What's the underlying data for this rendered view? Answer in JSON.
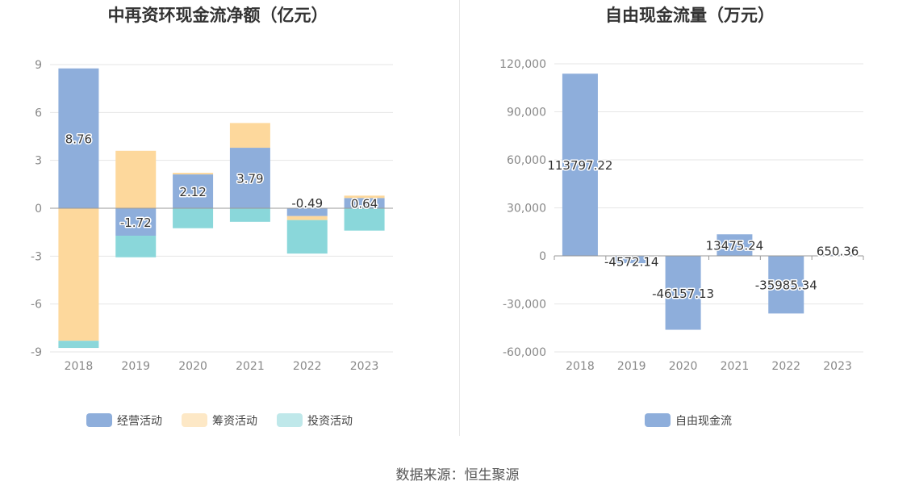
{
  "source": "数据来源：恒生聚源",
  "chart_data": [
    {
      "type": "bar",
      "stacked": true,
      "title": "中再资环现金流净额（亿元）",
      "categories": [
        "2018",
        "2019",
        "2020",
        "2021",
        "2022",
        "2023"
      ],
      "ylim": [
        -9,
        9
      ],
      "yticks": [
        9,
        6,
        3,
        0,
        -3,
        -6,
        -9
      ],
      "yticks_labels": [
        "9",
        "6",
        "3",
        "0",
        "-3",
        "-6",
        "-9"
      ],
      "grid": true,
      "legend": "bottom",
      "series": [
        {
          "name": "经营活动",
          "color": "#8eaedb",
          "values": [
            8.76,
            -1.72,
            2.12,
            3.79,
            -0.49,
            0.64
          ],
          "labels": [
            "8.76",
            "-1.72",
            "2.12",
            "3.79",
            "-0.49",
            "0.64"
          ]
        },
        {
          "name": "筹资活动",
          "color": "#fdd89c",
          "values": [
            -8.3,
            3.6,
            0.1,
            1.55,
            -0.25,
            0.15
          ]
        },
        {
          "name": "投资活动",
          "color": "#8ad7da",
          "values": [
            -0.45,
            -1.35,
            -1.25,
            -0.85,
            -2.1,
            -1.4
          ]
        }
      ],
      "legend_colors": [
        "#8eaedb",
        "#fde8c6",
        "#bfe8ea"
      ]
    },
    {
      "type": "bar",
      "title": "自由现金流量（万元）",
      "categories": [
        "2018",
        "2019",
        "2020",
        "2021",
        "2022",
        "2023"
      ],
      "ylim": [
        -60000,
        120000
      ],
      "yticks": [
        120000,
        90000,
        60000,
        30000,
        0,
        -30000,
        -60000
      ],
      "yticks_labels": [
        "120,000",
        "90,000",
        "60,000",
        "30,000",
        "0",
        "-30,000",
        "-60,000"
      ],
      "grid": true,
      "legend": "bottom",
      "series": [
        {
          "name": "自由现金流",
          "color": "#8eaedb",
          "values": [
            113797.22,
            -4572.14,
            -46157.13,
            13475.24,
            -35985.34,
            650.36
          ],
          "labels": [
            "113797.22",
            "-4572.14",
            "-46157.13",
            "13475.24",
            "-35985.34",
            "650.36"
          ]
        }
      ],
      "legend_colors": [
        "#8eaedb"
      ]
    }
  ]
}
